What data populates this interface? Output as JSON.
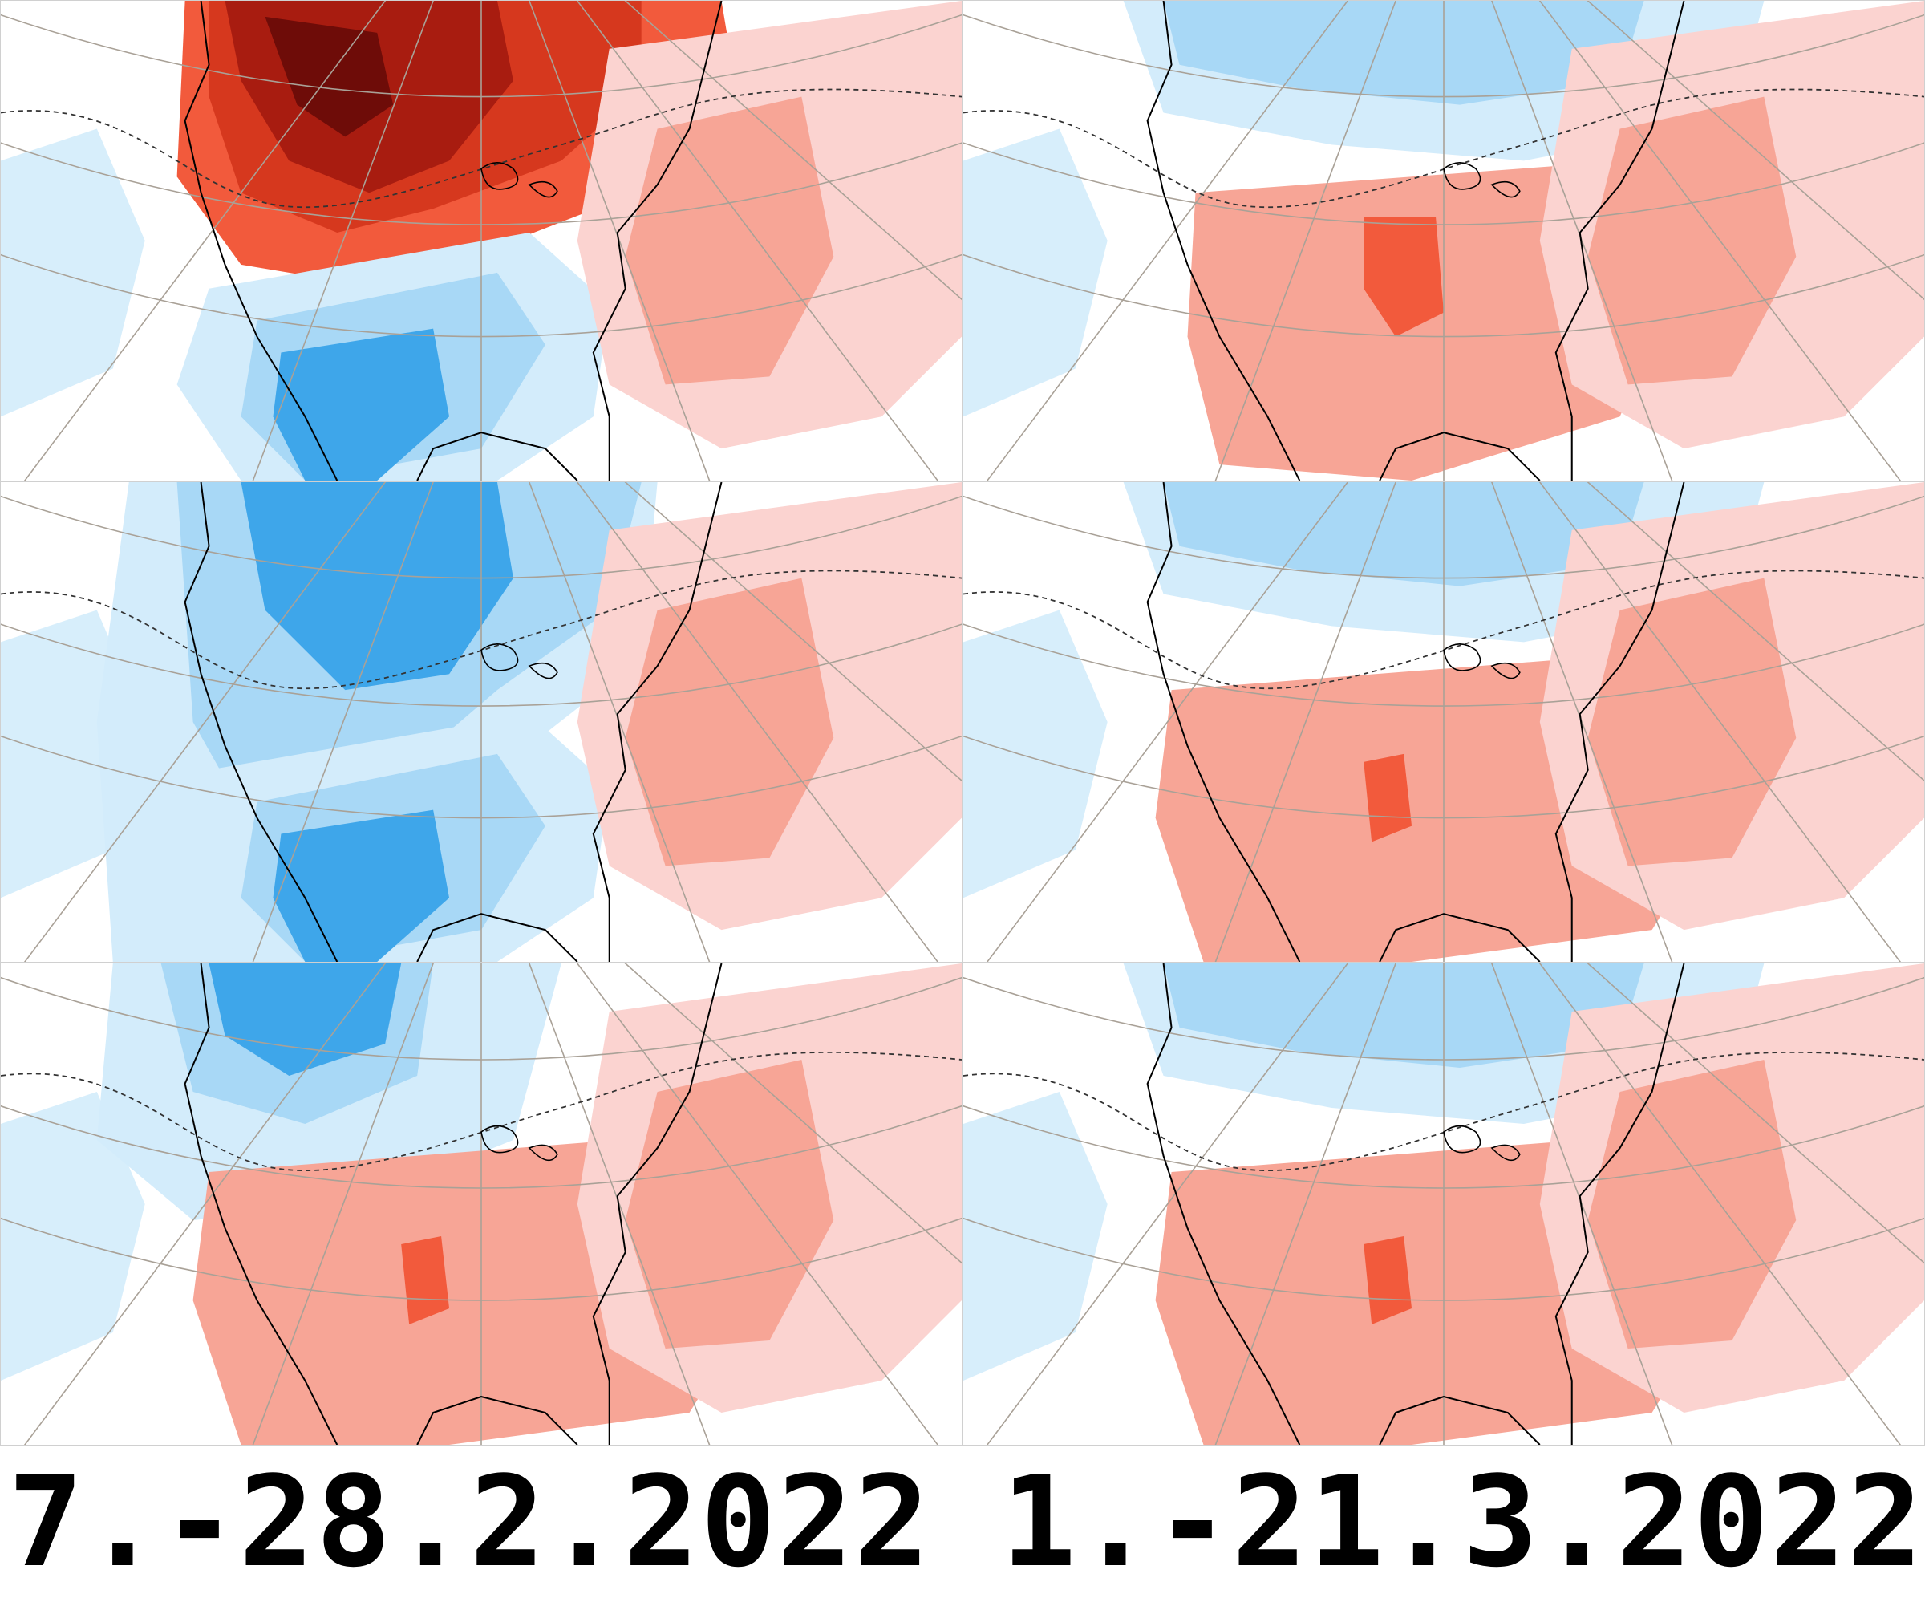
{
  "captions": {
    "left": "7.-28.2.2022",
    "right": "1.-21.3.2022"
  },
  "colors": {
    "warm_1": "#fbd3d0",
    "warm_2": "#f7a596",
    "warm_3": "#f25a3c",
    "warm_4": "#d6381e",
    "warm_5": "#a81c10",
    "warm_6": "#6e0c08",
    "cool_1": "#d3ecfb",
    "cool_2": "#a8d8f6",
    "cool_3": "#3ea6ea",
    "coast": "#000000",
    "graticule": "#a9a197",
    "contour": "#333333"
  },
  "panels": [
    {
      "name": "map-panel-feb-week1",
      "period": "left",
      "pattern": [
        "warm_far_north",
        "cold_central_us",
        "warm_atlantic"
      ]
    },
    {
      "name": "map-panel-mar-week1",
      "period": "right",
      "pattern": [
        "cold_far_north",
        "warm_central_us",
        "warm_atlantic"
      ]
    },
    {
      "name": "map-panel-feb-week2",
      "period": "left",
      "pattern": [
        "cold_canada",
        "cold_central_us",
        "warm_atlantic"
      ]
    },
    {
      "name": "map-panel-mar-week2",
      "period": "right",
      "pattern": [
        "cold_far_north",
        "warm_us",
        "warm_atlantic"
      ]
    },
    {
      "name": "map-panel-feb-week3",
      "period": "left",
      "pattern": [
        "cold_northwest",
        "warm_us",
        "warm_atlantic"
      ]
    },
    {
      "name": "map-panel-mar-week3",
      "period": "right",
      "pattern": [
        "cold_far_north",
        "warm_us",
        "warm_atlantic"
      ]
    }
  ]
}
